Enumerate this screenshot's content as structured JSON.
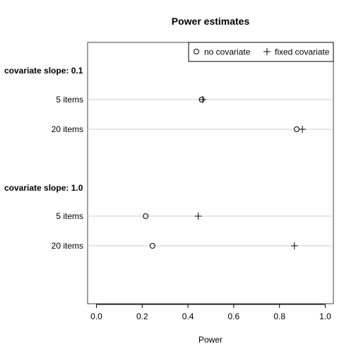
{
  "chart_data": {
    "type": "scatter",
    "title": "Power estimates",
    "xlabel": "Power",
    "ylabel": "",
    "xlim": [
      -0.04,
      1.04
    ],
    "xticks": [
      "0.0",
      "0.2",
      "0.4",
      "0.6",
      "0.8",
      "1.0"
    ],
    "grid": "horizontal lines at each row",
    "legend_position": "top-right",
    "series": [
      {
        "name": "no covariate",
        "marker": "open-circle"
      },
      {
        "name": "fixed covariate",
        "marker": "plus"
      }
    ],
    "groups": [
      {
        "label": "covariate slope: 0.1",
        "rows": [
          {
            "label": "5 items",
            "no_covariate": 0.46,
            "fixed_covariate": 0.465
          },
          {
            "label": "20 items",
            "no_covariate": 0.875,
            "fixed_covariate": 0.9
          }
        ]
      },
      {
        "label": "covariate slope: 1.0",
        "rows": [
          {
            "label": "5 items",
            "no_covariate": 0.215,
            "fixed_covariate": 0.445
          },
          {
            "label": "20 items",
            "no_covariate": 0.245,
            "fixed_covariate": 0.865
          }
        ]
      }
    ]
  }
}
